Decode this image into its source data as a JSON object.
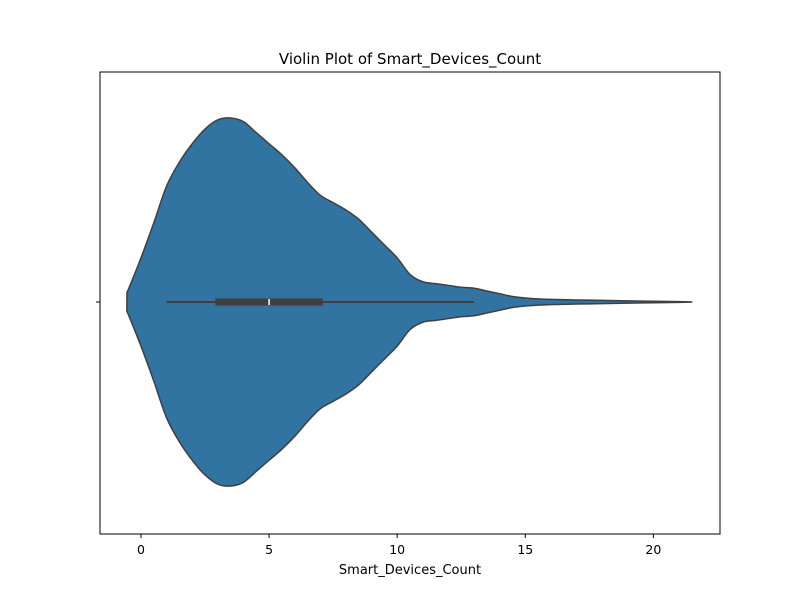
{
  "chart_data": {
    "type": "violin",
    "title": "Violin Plot of Smart_Devices_Count",
    "xlabel": "Smart_Devices_Count",
    "ylabel": "",
    "xlim": [
      -1.6,
      22.6
    ],
    "xticks": [
      0,
      5,
      10,
      15,
      20
    ],
    "xtick_labels": [
      "0",
      "5",
      "10",
      "15",
      "20"
    ],
    "orientation": "horizontal",
    "grid": false,
    "legend": "none",
    "color": "#3274a1",
    "edge_color": "#3f3f3f",
    "box_color": "#3f3f3f",
    "median_color": "#ffffff",
    "series": [
      {
        "whisker_low": 1,
        "q1": 2.9,
        "median": 5,
        "q3": 7.1,
        "whisker_high": 13,
        "density_profile": {
          "x": [
            -0.55,
            -0.4,
            0,
            0.5,
            1,
            1.5,
            2,
            2.5,
            3,
            3.5,
            4,
            4.5,
            5,
            5.5,
            6,
            6.5,
            7,
            7.5,
            8,
            8.5,
            9,
            9.5,
            10,
            10.5,
            11,
            11.5,
            12,
            12.5,
            13,
            13.5,
            14,
            14.5,
            15,
            15.5,
            16,
            17,
            18,
            19,
            20,
            21,
            21.5
          ],
          "relative_density": [
            0.05,
            0.1,
            0.24,
            0.43,
            0.63,
            0.76,
            0.86,
            0.94,
            0.99,
            1.0,
            0.98,
            0.92,
            0.86,
            0.8,
            0.73,
            0.65,
            0.58,
            0.54,
            0.5,
            0.45,
            0.38,
            0.31,
            0.24,
            0.15,
            0.11,
            0.1,
            0.09,
            0.08,
            0.075,
            0.06,
            0.045,
            0.03,
            0.022,
            0.017,
            0.014,
            0.011,
            0.009,
            0.006,
            0.004,
            0.002,
            0.0
          ]
        }
      }
    ]
  }
}
